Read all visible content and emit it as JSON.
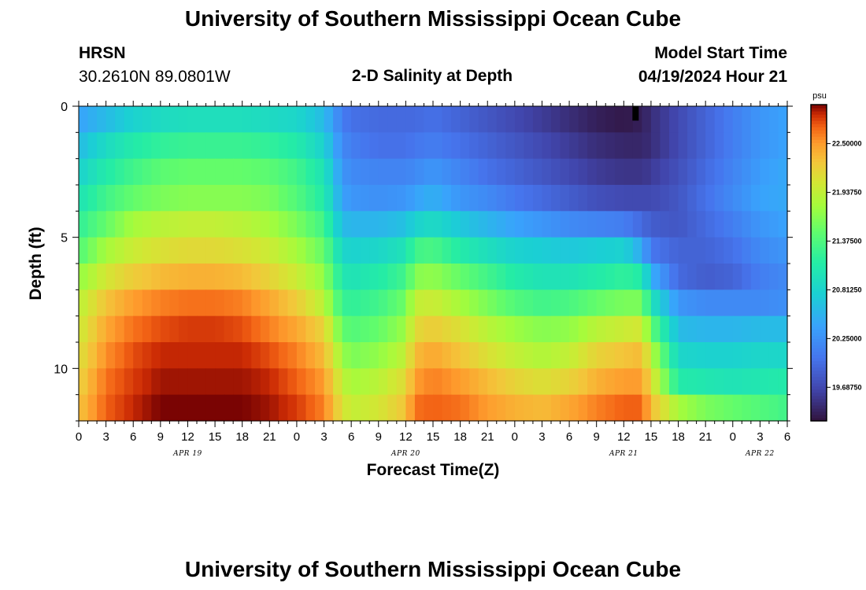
{
  "page": {
    "title": "University of Southern Mississippi Ocean Cube",
    "footer_title": "University of Southern Mississippi Ocean Cube",
    "station": "HRSN",
    "coordinates": "30.2610N  89.0801W",
    "subtitle": "2-D Salinity at Depth",
    "model_label": "Model Start Time",
    "model_time": "04/19/2024 Hour 21"
  },
  "chart_data": {
    "type": "heatmap",
    "title": "2-D Salinity at Depth",
    "xlabel": "Forecast Time(Z)",
    "ylabel": "Depth (ft)",
    "x_range_hours": [
      0,
      78
    ],
    "x_tick_hours": [
      0,
      3,
      6,
      9,
      12,
      15,
      18,
      21,
      24,
      27,
      30,
      33,
      36,
      39,
      42,
      45,
      48,
      51,
      54,
      57,
      60,
      63,
      66,
      69,
      72,
      75,
      78
    ],
    "x_tick_labels": [
      "0",
      "3",
      "6",
      "9",
      "12",
      "15",
      "18",
      "21",
      "0",
      "3",
      "6",
      "9",
      "12",
      "15",
      "18",
      "21",
      "0",
      "3",
      "6",
      "9",
      "12",
      "15",
      "18",
      "21",
      "0",
      "3",
      "6"
    ],
    "date_labels": [
      {
        "hour": 12,
        "label": "APR 19"
      },
      {
        "hour": 36,
        "label": "APR 20"
      },
      {
        "hour": 60,
        "label": "APR 21"
      },
      {
        "hour": 75,
        "label": "APR 22"
      }
    ],
    "y_range_ft": [
      0,
      12
    ],
    "y_tick_values": [
      0,
      5,
      10
    ],
    "y_tick_labels": [
      "0",
      "5",
      "10"
    ],
    "depth_levels_ft": [
      0.5,
      1.5,
      2.5,
      3.5,
      4.5,
      5.5,
      6.5,
      7.5,
      8.5,
      9.5,
      10.5,
      11.5
    ],
    "colorbar": {
      "unit": "psu",
      "min": 19.3,
      "max": 22.95,
      "ticks": [
        22.5,
        21.9375,
        21.375,
        20.8125,
        20.25,
        19.6875
      ],
      "tick_labels": [
        "22.50000",
        "21.93750",
        "21.37500",
        "20.81250",
        "20.25000",
        "19.68750"
      ]
    },
    "salinity_keyframes": {
      "hours": [
        0,
        3,
        6,
        9,
        12,
        15,
        18,
        21,
        24,
        27,
        29,
        30,
        33,
        36,
        37,
        39,
        42,
        45,
        48,
        51,
        54,
        57,
        60,
        62,
        63,
        66,
        69,
        72,
        75,
        78
      ],
      "rows": [
        [
          20.4,
          20.6,
          20.8,
          20.9,
          20.95,
          20.95,
          20.95,
          20.9,
          20.85,
          20.6,
          20.1,
          20.0,
          19.95,
          19.95,
          19.95,
          20.0,
          19.9,
          19.8,
          19.7,
          19.6,
          19.5,
          19.4,
          19.35,
          19.4,
          19.5,
          19.7,
          19.9,
          20.1,
          20.3,
          20.4
        ],
        [
          20.6,
          20.9,
          21.1,
          21.2,
          21.25,
          21.25,
          21.25,
          21.2,
          21.1,
          20.8,
          20.2,
          20.1,
          20.0,
          20.0,
          20.05,
          20.1,
          20.0,
          19.9,
          19.8,
          19.7,
          19.6,
          19.5,
          19.45,
          19.45,
          19.5,
          19.7,
          19.9,
          20.1,
          20.3,
          20.4
        ],
        [
          20.8,
          21.1,
          21.3,
          21.45,
          21.5,
          21.5,
          21.5,
          21.45,
          21.3,
          21.0,
          20.3,
          20.2,
          20.15,
          20.15,
          20.2,
          20.3,
          20.15,
          20.0,
          19.9,
          19.8,
          19.7,
          19.6,
          19.55,
          19.55,
          19.6,
          19.75,
          19.95,
          20.15,
          20.35,
          20.45
        ],
        [
          21.0,
          21.3,
          21.5,
          21.6,
          21.65,
          21.65,
          21.65,
          21.6,
          21.4,
          21.1,
          20.4,
          20.3,
          20.25,
          20.3,
          20.4,
          20.5,
          20.3,
          20.2,
          20.05,
          19.95,
          19.85,
          19.75,
          19.7,
          19.7,
          19.7,
          19.8,
          20.0,
          20.2,
          20.4,
          20.45
        ],
        [
          21.2,
          21.5,
          21.8,
          21.9,
          21.95,
          21.95,
          21.9,
          21.8,
          21.6,
          21.3,
          20.6,
          20.55,
          20.55,
          20.65,
          20.8,
          20.9,
          20.7,
          20.55,
          20.4,
          20.3,
          20.2,
          20.15,
          20.1,
          19.95,
          19.85,
          19.8,
          19.95,
          20.1,
          20.3,
          20.4
        ],
        [
          21.4,
          21.8,
          22.0,
          22.1,
          22.15,
          22.15,
          22.1,
          22.0,
          21.8,
          21.5,
          20.85,
          20.8,
          20.85,
          21.0,
          21.3,
          21.35,
          21.1,
          20.95,
          20.8,
          20.75,
          20.7,
          20.75,
          20.8,
          20.45,
          20.05,
          19.9,
          19.9,
          20.0,
          20.2,
          20.3
        ],
        [
          21.7,
          22.05,
          22.25,
          22.35,
          22.4,
          22.4,
          22.35,
          22.2,
          22.0,
          21.7,
          21.05,
          21.0,
          21.1,
          21.3,
          21.65,
          21.7,
          21.5,
          21.3,
          21.1,
          21.0,
          21.0,
          21.1,
          21.2,
          21.1,
          20.5,
          19.95,
          19.85,
          19.9,
          20.1,
          20.2
        ],
        [
          21.9,
          22.3,
          22.5,
          22.6,
          22.65,
          22.65,
          22.6,
          22.45,
          22.25,
          21.9,
          21.25,
          21.2,
          21.3,
          21.55,
          21.95,
          22.0,
          21.8,
          21.6,
          21.4,
          21.3,
          21.35,
          21.5,
          21.6,
          21.6,
          21.0,
          20.3,
          20.2,
          20.2,
          20.2,
          20.25
        ],
        [
          22.0,
          22.45,
          22.65,
          22.75,
          22.8,
          22.8,
          22.75,
          22.6,
          22.45,
          22.2,
          21.5,
          21.4,
          21.5,
          21.75,
          22.15,
          22.25,
          22.1,
          21.9,
          21.75,
          21.65,
          21.7,
          21.9,
          22.0,
          22.05,
          21.5,
          20.6,
          20.55,
          20.55,
          20.6,
          20.6
        ],
        [
          22.1,
          22.55,
          22.75,
          22.85,
          22.85,
          22.85,
          22.85,
          22.75,
          22.6,
          22.35,
          21.75,
          21.6,
          21.7,
          21.95,
          22.35,
          22.45,
          22.3,
          22.1,
          21.95,
          21.85,
          21.95,
          22.2,
          22.3,
          22.35,
          21.9,
          20.85,
          20.8,
          20.8,
          20.85,
          20.85
        ],
        [
          22.2,
          22.65,
          22.8,
          22.9,
          22.9,
          22.9,
          22.9,
          22.85,
          22.7,
          22.5,
          21.95,
          21.8,
          21.9,
          22.15,
          22.5,
          22.6,
          22.5,
          22.35,
          22.2,
          22.1,
          22.2,
          22.4,
          22.5,
          22.5,
          22.15,
          21.1,
          21.05,
          21.0,
          21.05,
          21.1
        ],
        [
          22.3,
          22.7,
          22.85,
          22.95,
          22.95,
          22.95,
          22.95,
          22.9,
          22.8,
          22.6,
          22.1,
          21.95,
          22.05,
          22.3,
          22.65,
          22.7,
          22.65,
          22.5,
          22.4,
          22.35,
          22.45,
          22.6,
          22.7,
          22.7,
          22.35,
          21.8,
          21.6,
          21.5,
          21.4,
          21.3
        ]
      ]
    },
    "highlight_cell": {
      "hour": 61.3,
      "depth_ft": 0.5,
      "note": "black marker near surface"
    }
  }
}
